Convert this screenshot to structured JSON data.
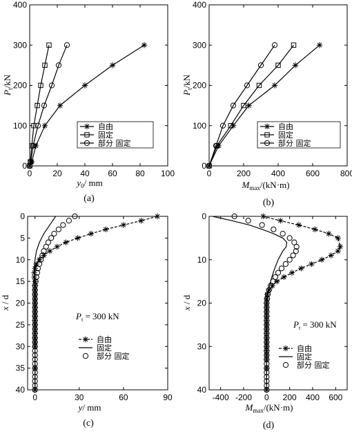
{
  "chart_data": [
    {
      "id": "a",
      "type": "line",
      "caption": "(a)",
      "xlabel": {
        "main": "y",
        "sub": "0",
        "unit": "/ mm"
      },
      "ylabel": {
        "main": "P",
        "sub": "t",
        "unit": "/kN"
      },
      "xlim": [
        0,
        100
      ],
      "ylim": [
        0,
        400
      ],
      "xticks": [
        0,
        20,
        40,
        60,
        80,
        100
      ],
      "yticks": [
        0,
        100,
        200,
        300,
        400
      ],
      "legend_position": "right-middle",
      "series": [
        {
          "name": "自由",
          "marker": "star",
          "line": "solid",
          "x": [
            0,
            1.5,
            4.5,
            11,
            22,
            40,
            60,
            83
          ],
          "y": [
            0,
            10,
            50,
            100,
            150,
            200,
            250,
            300
          ]
        },
        {
          "name": "固定",
          "marker": "square",
          "line": "solid",
          "x": [
            0,
            0.5,
            1.5,
            3,
            5.5,
            8,
            11,
            14
          ],
          "y": [
            0,
            10,
            50,
            100,
            150,
            200,
            250,
            300
          ]
        },
        {
          "name": "部分 固定",
          "marker": "circle",
          "line": "solid",
          "x": [
            0,
            0.8,
            2.5,
            6,
            10.5,
            16,
            21,
            27
          ],
          "y": [
            0,
            10,
            50,
            100,
            150,
            200,
            250,
            300
          ]
        }
      ]
    },
    {
      "id": "b",
      "type": "line",
      "caption": "(b)",
      "xlabel": {
        "main": "M",
        "sub": "max",
        "unit": "/(kN·m)"
      },
      "ylabel": {
        "main": "P",
        "sub": "t",
        "unit": "/kN"
      },
      "xlim": [
        0,
        800
      ],
      "ylim": [
        0,
        400
      ],
      "xticks": [
        0,
        200,
        400,
        600,
        800
      ],
      "yticks": [
        0,
        100,
        200,
        300,
        400
      ],
      "legend_position": "right-middle",
      "series": [
        {
          "name": "自由",
          "marker": "star",
          "line": "solid",
          "x": [
            0,
            55,
            140,
            230,
            380,
            500,
            640
          ],
          "y": [
            0,
            50,
            100,
            150,
            200,
            250,
            300
          ]
        },
        {
          "name": "固定",
          "marker": "square",
          "line": "solid",
          "x": [
            0,
            45,
            125,
            200,
            290,
            400,
            490
          ],
          "y": [
            0,
            50,
            100,
            150,
            200,
            250,
            300
          ]
        },
        {
          "name": "部分 固定",
          "marker": "circle",
          "line": "solid",
          "x": [
            0,
            40,
            80,
            140,
            220,
            300,
            380
          ],
          "y": [
            0,
            50,
            100,
            150,
            200,
            250,
            300
          ]
        }
      ]
    },
    {
      "id": "c",
      "type": "line",
      "caption": "(c)",
      "xlabel": {
        "main": "y",
        "sub": "",
        "unit": "/ mm"
      },
      "ylabel": {
        "main": "x",
        "sub": "",
        "unit": " / d"
      },
      "xlim": [
        -5,
        90
      ],
      "ylim": [
        0,
        40
      ],
      "y_inverted": true,
      "xticks": [
        0,
        30,
        60,
        90
      ],
      "yticks": [
        0,
        5,
        10,
        15,
        20,
        25,
        30,
        35,
        40
      ],
      "annotation": {
        "main": "P",
        "sub": "t",
        "rest": " = 300 kN"
      },
      "legend_position": "lower-middle",
      "series": [
        {
          "name": "自由",
          "marker": "star",
          "line": "dashed",
          "x": [
            83,
            72,
            60,
            48,
            38,
            29,
            21,
            15,
            10,
            6,
            3,
            1,
            0,
            -0.5,
            -0.5,
            0,
            0,
            0,
            0,
            0,
            0,
            0,
            0,
            0,
            0,
            0,
            0,
            0,
            0,
            0,
            0,
            0,
            0
          ],
          "y": [
            0,
            1,
            2,
            3,
            4,
            5,
            6,
            7,
            8,
            9,
            10,
            11,
            12,
            13,
            14,
            15,
            16,
            17,
            18,
            19,
            20,
            21,
            22,
            23,
            24,
            25,
            26,
            27,
            28,
            29,
            30,
            35,
            40
          ]
        },
        {
          "name": "固定",
          "marker": "none",
          "line": "solid",
          "x": [
            14,
            12,
            10,
            8,
            6,
            4.5,
            3,
            2,
            1,
            0.5,
            0,
            -0.5,
            -0.5,
            0,
            0,
            0,
            0,
            0,
            0
          ],
          "y": [
            0,
            1,
            2,
            3,
            4,
            5,
            6,
            7,
            8,
            9,
            10,
            12,
            14,
            16,
            18,
            20,
            25,
            30,
            40
          ]
        },
        {
          "name": "部分 固定",
          "marker": "circle",
          "line": "none",
          "x": [
            27,
            23,
            19,
            16,
            13,
            11,
            9,
            7.5,
            6,
            5,
            4,
            3,
            2,
            1.5,
            1,
            0.5,
            0,
            0,
            0,
            0,
            0,
            0,
            0,
            0,
            0,
            0,
            0,
            0,
            0,
            0,
            0,
            0,
            0,
            0,
            0,
            0,
            0,
            0,
            0,
            0,
            0
          ],
          "y": [
            0,
            1,
            2,
            3,
            4,
            5,
            6,
            7,
            8,
            9,
            10,
            11,
            12,
            13,
            14,
            15,
            16,
            17,
            18,
            19,
            20,
            21,
            22,
            23,
            24,
            25,
            26,
            27,
            28,
            29,
            30,
            31,
            32,
            33,
            34,
            35,
            36,
            37,
            38,
            39,
            40
          ]
        }
      ]
    },
    {
      "id": "d",
      "type": "line",
      "caption": "(d)",
      "xlabel": {
        "main": "M",
        "sub": "max",
        "unit": "/(kN·m)"
      },
      "ylabel": {
        "main": "x",
        "sub": "",
        "unit": " / d"
      },
      "xlim": [
        -500,
        700
      ],
      "ylim": [
        0,
        40
      ],
      "y_inverted": true,
      "xticks": [
        -400,
        -200,
        0,
        200,
        400,
        600
      ],
      "yticks": [
        0,
        10,
        20,
        30,
        40
      ],
      "annotation": {
        "main": "P",
        "sub": "t",
        "rest": " = 300 kN"
      },
      "legend_position": "lower-right",
      "series": [
        {
          "name": "自由",
          "marker": "star",
          "line": "dashed",
          "x": [
            -30,
            120,
            280,
            420,
            540,
            620,
            640,
            620,
            560,
            480,
            390,
            300,
            220,
            150,
            90,
            50,
            20,
            5,
            0,
            0,
            0,
            0,
            0,
            0,
            0,
            0,
            0,
            0,
            0,
            0,
            0,
            0,
            0,
            0,
            0
          ],
          "y": [
            0,
            1,
            2,
            3,
            4,
            5,
            7,
            8,
            9,
            10,
            11,
            12,
            13,
            14,
            15,
            16,
            17,
            18,
            19,
            20,
            21,
            22,
            23,
            24,
            25,
            26,
            27,
            28,
            29,
            30,
            31,
            32,
            33,
            35,
            40
          ]
        },
        {
          "name": "固定",
          "marker": "none",
          "line": "solid",
          "x": [
            -470,
            -300,
            -150,
            -40,
            60,
            140,
            175,
            170,
            140,
            100,
            70,
            45,
            25,
            10,
            0,
            0,
            0,
            0
          ],
          "y": [
            0,
            1,
            2,
            3,
            4,
            5,
            6,
            7,
            8,
            10,
            12,
            14,
            16,
            18,
            20,
            25,
            30,
            40
          ]
        },
        {
          "name": "部分 固定",
          "marker": "circle",
          "line": "none",
          "x": [
            -280,
            -160,
            -40,
            60,
            140,
            200,
            240,
            260,
            255,
            230,
            200,
            165,
            130,
            100,
            75,
            55,
            35,
            20,
            10,
            5,
            0,
            0,
            0,
            0,
            0,
            0,
            0,
            0,
            0,
            0,
            0,
            0,
            0,
            0,
            0,
            0,
            0,
            0,
            0,
            0,
            0
          ],
          "y": [
            0,
            1,
            2,
            3,
            4,
            5,
            6,
            7,
            8,
            9,
            10,
            11,
            12,
            13,
            14,
            15,
            16,
            17,
            18,
            19,
            20,
            21,
            22,
            23,
            24,
            25,
            26,
            27,
            28,
            29,
            30,
            31,
            32,
            33,
            34,
            35,
            36,
            37,
            38,
            39,
            40
          ]
        }
      ]
    }
  ]
}
